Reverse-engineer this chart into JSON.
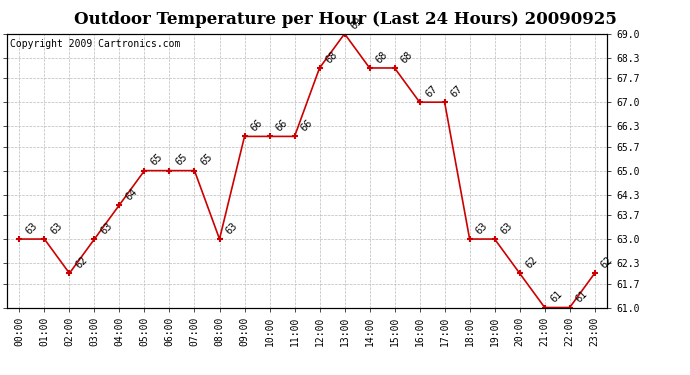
{
  "title": "Outdoor Temperature per Hour (Last 24 Hours) 20090925",
  "copyright": "Copyright 2009 Cartronics.com",
  "hours": [
    "00:00",
    "01:00",
    "02:00",
    "03:00",
    "04:00",
    "05:00",
    "06:00",
    "07:00",
    "08:00",
    "09:00",
    "10:00",
    "11:00",
    "12:00",
    "13:00",
    "14:00",
    "15:00",
    "16:00",
    "17:00",
    "18:00",
    "19:00",
    "20:00",
    "21:00",
    "22:00",
    "23:00"
  ],
  "temps": [
    63,
    63,
    62,
    63,
    64,
    65,
    65,
    65,
    63,
    66,
    66,
    66,
    68,
    69,
    68,
    68,
    67,
    67,
    63,
    63,
    62,
    61,
    61,
    62
  ],
  "ylim_min": 61.0,
  "ylim_max": 69.0,
  "yticks": [
    61.0,
    61.7,
    62.3,
    63.0,
    63.7,
    64.3,
    65.0,
    65.7,
    66.3,
    67.0,
    67.7,
    68.3,
    69.0
  ],
  "ytick_labels": [
    "61.0",
    "61.7",
    "62.3",
    "63.0",
    "63.7",
    "64.3",
    "65.0",
    "65.7",
    "66.3",
    "67.0",
    "67.7",
    "68.3",
    "69.0"
  ],
  "line_color": "#cc0000",
  "marker_color": "#cc0000",
  "bg_color": "#ffffff",
  "grid_color": "#bbbbbb",
  "title_fontsize": 12,
  "tick_fontsize": 7,
  "annot_fontsize": 7,
  "copyright_fontsize": 7
}
